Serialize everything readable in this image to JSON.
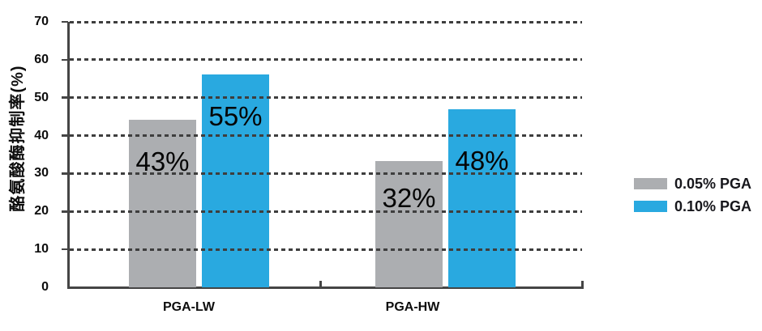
{
  "chart_data": {
    "type": "bar",
    "ylabel": "酪氨酸酶抑制率(%)",
    "xlabel": "",
    "categories": [
      "PGA-LW",
      "PGA-HW"
    ],
    "series": [
      {
        "name": "0.05% PGA",
        "color": "#ACAEB1",
        "values": [
          43,
          32
        ],
        "point_labels": [
          "43%",
          "32%"
        ],
        "drawn_values": [
          44.2,
          33.3
        ]
      },
      {
        "name": "0.10% PGA",
        "color": "#29A9E0",
        "values": [
          55,
          48
        ],
        "point_labels": [
          "55%",
          "48%"
        ],
        "drawn_values": [
          56.1,
          46.9
        ]
      }
    ],
    "ylim": [
      0,
      70
    ],
    "yticks": [
      0,
      10,
      20,
      30,
      40,
      50,
      60,
      70
    ],
    "grid": "horizontal-dashed",
    "legend_position": "right"
  },
  "colors": {
    "bar_gray": "#ACAEB1",
    "bar_blue": "#29A9E0",
    "gridline": "#3E3E3E",
    "axis": "#454545",
    "text": "#0D0D0D"
  }
}
